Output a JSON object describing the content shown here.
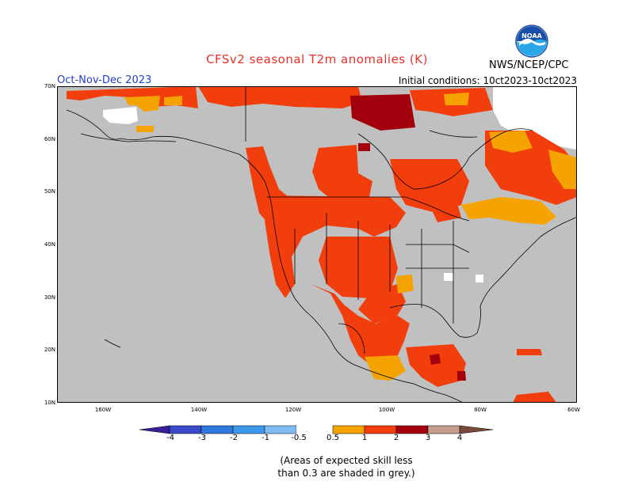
{
  "header": {
    "title": "CFSv2 seasonal T2m anomalies (K)",
    "period": "Oct-Nov-Dec 2023",
    "initial_conditions": "Initial conditions: 10ct2023-10ct2023",
    "agency": "NWS/NCEP/CPC",
    "logo_text": "NOAA",
    "logo_colors": {
      "blue": "#1a4fa8",
      "sky": "#29a6e6",
      "white": "#ffffff"
    }
  },
  "map": {
    "region": "North America",
    "lat_labels": [
      "70N",
      "60N",
      "50N",
      "40N",
      "30N",
      "20N",
      "10N"
    ],
    "lon_labels": [
      "160W",
      "140W",
      "120W",
      "100W",
      "80W",
      "60W"
    ],
    "colors": {
      "ocean": "#c0c0c0",
      "land_low_skill": "#c0c0c0",
      "white_region": "#ffffff",
      "anom_0_5_1": "#f5a300",
      "anom_1_2": "#f23d0c",
      "anom_2_3": "#a3000e",
      "boundaries": "#000000"
    }
  },
  "colorbar": {
    "ticks": [
      "-4",
      "-3",
      "-2",
      "-1",
      "-0.5",
      "0.5",
      "1",
      "2",
      "3",
      "4"
    ],
    "colors": [
      "#3b1f99",
      "#3a49c8",
      "#2f79de",
      "#3d98ea",
      "#7fbaf2",
      "#ffffff",
      "#f5a300",
      "#f23d0c",
      "#a3000e",
      "#c69c8c",
      "#7a4a3a"
    ]
  },
  "footnote": {
    "line1": "(Areas of expected skill less",
    "line2": "than 0.3 are shaded in grey.)"
  }
}
